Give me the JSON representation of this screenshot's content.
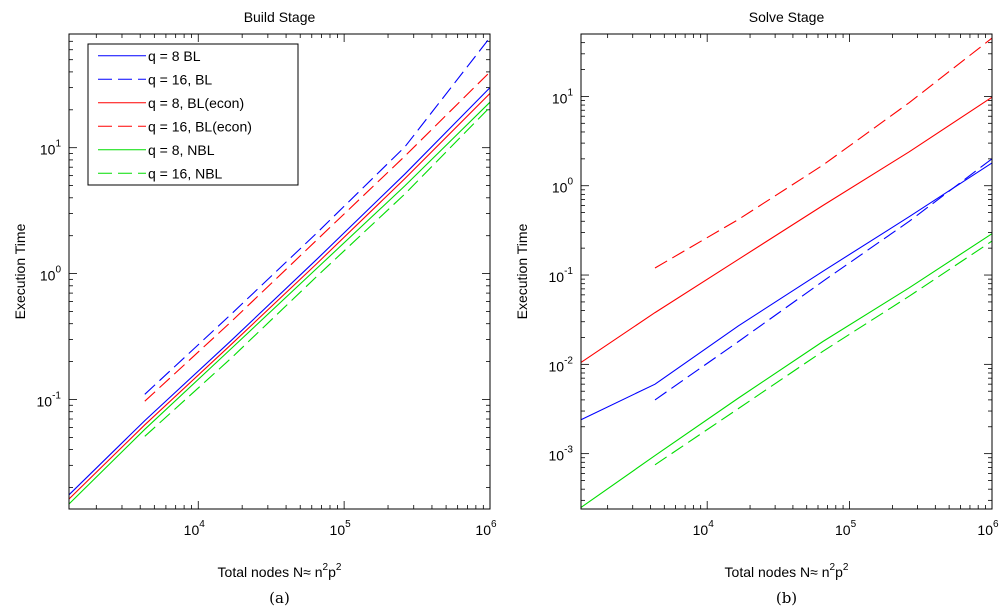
{
  "chart_data": [
    {
      "type": "line",
      "title": "Build Stage",
      "xlabel": "Total nodes N≈ n²p²",
      "ylabel": "Execution Time",
      "caption": "(a)",
      "x_scale": "log",
      "y_scale": "log",
      "xlim": [
        1300,
        1000000
      ],
      "ylim": [
        0.0135,
        80
      ],
      "x_ticks": [
        {
          "base": "10",
          "exp": "4",
          "value": 10000
        },
        {
          "base": "10",
          "exp": "5",
          "value": 100000
        },
        {
          "base": "10",
          "exp": "6",
          "value": 1000000
        }
      ],
      "y_ticks": [
        {
          "base": "10",
          "exp": "-1",
          "value": 0.1
        },
        {
          "base": "10",
          "exp": "0",
          "value": 1
        },
        {
          "base": "10",
          "exp": "1",
          "value": 10
        }
      ],
      "legend_position": "top-left",
      "series": [
        {
          "name": "q = 8 BL",
          "color": "#0000ff",
          "dash": "solid",
          "x": [
            1300,
            4300,
            16600,
            65000,
            262000,
            1000000
          ],
          "y": [
            0.0175,
            0.068,
            0.29,
            1.3,
            6.2,
            30
          ]
        },
        {
          "name": "q = 16, BL",
          "color": "#0000ff",
          "dash": "dashed",
          "x": [
            4300,
            16600,
            65000,
            262000,
            1000000
          ],
          "y": [
            0.11,
            0.47,
            2.1,
            10.2,
            75
          ]
        },
        {
          "name": "q = 8, BL(econ)",
          "color": "#ff0000",
          "dash": "solid",
          "x": [
            1300,
            4300,
            16600,
            65000,
            262000,
            1000000
          ],
          "y": [
            0.0162,
            0.063,
            0.27,
            1.2,
            5.7,
            27
          ]
        },
        {
          "name": "q = 16, BL(econ)",
          "color": "#ff0000",
          "dash": "dashed",
          "x": [
            4300,
            16600,
            65000,
            262000,
            1000000
          ],
          "y": [
            0.097,
            0.41,
            1.85,
            8.6,
            40
          ]
        },
        {
          "name": "q = 8, NBL",
          "color": "#00dd00",
          "dash": "solid",
          "x": [
            1300,
            4300,
            16600,
            65000,
            262000,
            1000000
          ],
          "y": [
            0.0148,
            0.058,
            0.25,
            1.1,
            5.0,
            23
          ]
        },
        {
          "name": "q = 16, NBL",
          "color": "#00dd00",
          "dash": "dashed",
          "x": [
            4300,
            16600,
            65000,
            262000,
            1000000
          ],
          "y": [
            0.051,
            0.21,
            0.95,
            4.3,
            21
          ]
        }
      ]
    },
    {
      "type": "line",
      "title": "Solve Stage",
      "xlabel": "Total nodes N≈ n²p²",
      "ylabel": "Execution Time",
      "caption": "(b)",
      "x_scale": "log",
      "y_scale": "log",
      "xlim": [
        1300,
        1000000
      ],
      "ylim": [
        0.00024,
        50
      ],
      "x_ticks": [
        {
          "base": "10",
          "exp": "4",
          "value": 10000
        },
        {
          "base": "10",
          "exp": "5",
          "value": 100000
        },
        {
          "base": "10",
          "exp": "6",
          "value": 1000000
        }
      ],
      "y_ticks": [
        {
          "base": "10",
          "exp": "-3",
          "value": 0.001
        },
        {
          "base": "10",
          "exp": "-2",
          "value": 0.01
        },
        {
          "base": "10",
          "exp": "-1",
          "value": 0.1
        },
        {
          "base": "10",
          "exp": "0",
          "value": 1
        },
        {
          "base": "10",
          "exp": "1",
          "value": 10
        }
      ],
      "series": [
        {
          "name": "q = 8 BL",
          "color": "#0000ff",
          "dash": "solid",
          "x": [
            1300,
            4300,
            16600,
            65000,
            262000,
            1000000
          ],
          "y": [
            0.0024,
            0.006,
            0.027,
            0.11,
            0.45,
            1.8
          ]
        },
        {
          "name": "q = 16, BL",
          "color": "#0000ff",
          "dash": "dashed",
          "x": [
            4300,
            16600,
            65000,
            262000,
            1000000
          ],
          "y": [
            0.004,
            0.018,
            0.085,
            0.4,
            2.0
          ]
        },
        {
          "name": "q = 8, BL(econ)",
          "color": "#ff0000",
          "dash": "solid",
          "x": [
            1300,
            4300,
            16600,
            65000,
            262000,
            1000000
          ],
          "y": [
            0.0105,
            0.038,
            0.15,
            0.6,
            2.4,
            9.8
          ]
        },
        {
          "name": "q = 16, BL(econ)",
          "color": "#ff0000",
          "dash": "dashed",
          "x": [
            4300,
            16600,
            65000,
            262000,
            1000000
          ],
          "y": [
            0.12,
            0.42,
            1.7,
            8.5,
            45
          ]
        },
        {
          "name": "q = 8, NBL",
          "color": "#00dd00",
          "dash": "solid",
          "x": [
            1300,
            4300,
            16600,
            65000,
            262000,
            1000000
          ],
          "y": [
            0.00025,
            0.00095,
            0.0042,
            0.018,
            0.072,
            0.29
          ]
        },
        {
          "name": "q = 16, NBL",
          "color": "#00dd00",
          "dash": "dashed",
          "x": [
            4300,
            16600,
            65000,
            262000,
            1000000
          ],
          "y": [
            0.00075,
            0.0032,
            0.014,
            0.058,
            0.24
          ]
        }
      ]
    }
  ]
}
